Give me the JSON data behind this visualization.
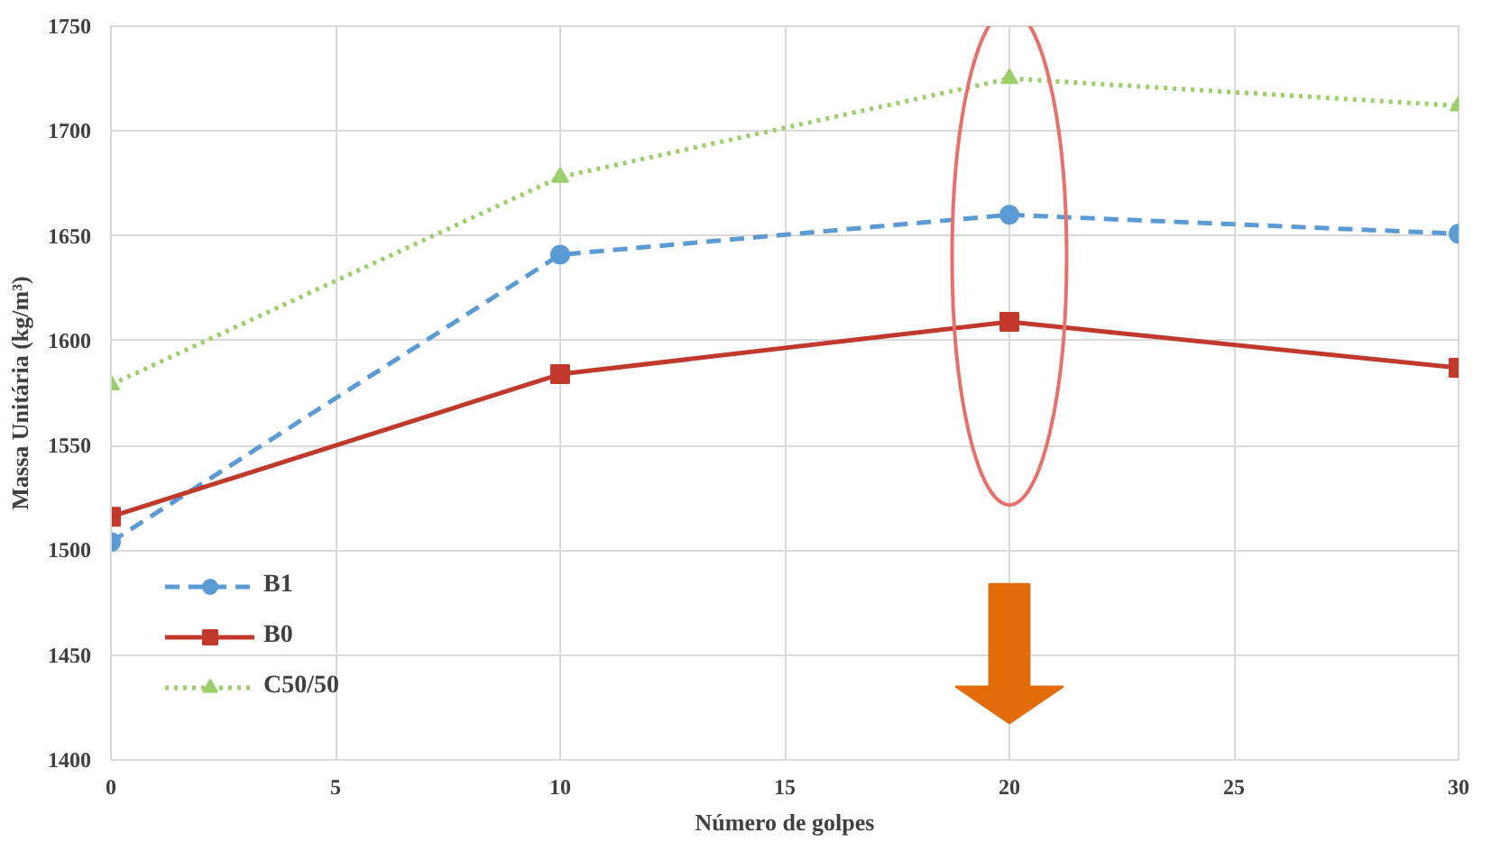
{
  "chart_data": {
    "type": "line",
    "xlabel": "Número de golpes",
    "ylabel": "Massa Unitária (kg/m³)",
    "x": [
      0,
      10,
      20,
      30
    ],
    "series": [
      {
        "name": "B1",
        "color": "#5b9bd5",
        "values": [
          1504,
          1641,
          1660,
          1651
        ],
        "marker": "circle",
        "line_style": "dashed"
      },
      {
        "name": "B0",
        "color": "#c0392b",
        "values": [
          1516,
          1584,
          1609,
          1587
        ],
        "marker": "square",
        "line_style": "solid"
      },
      {
        "name": "C50/50",
        "color": "#9bcf6a",
        "values": [
          1579,
          1678,
          1725,
          1712
        ],
        "marker": "triangle",
        "line_style": "dotted"
      }
    ],
    "xlim": [
      0,
      30
    ],
    "xticks": [
      0,
      5,
      10,
      15,
      20,
      25,
      30
    ],
    "ylim": [
      1400,
      1750
    ],
    "yticks": [
      1400,
      1450,
      1500,
      1550,
      1600,
      1650,
      1700,
      1750
    ],
    "grid": true,
    "legend": "bottom left"
  }
}
